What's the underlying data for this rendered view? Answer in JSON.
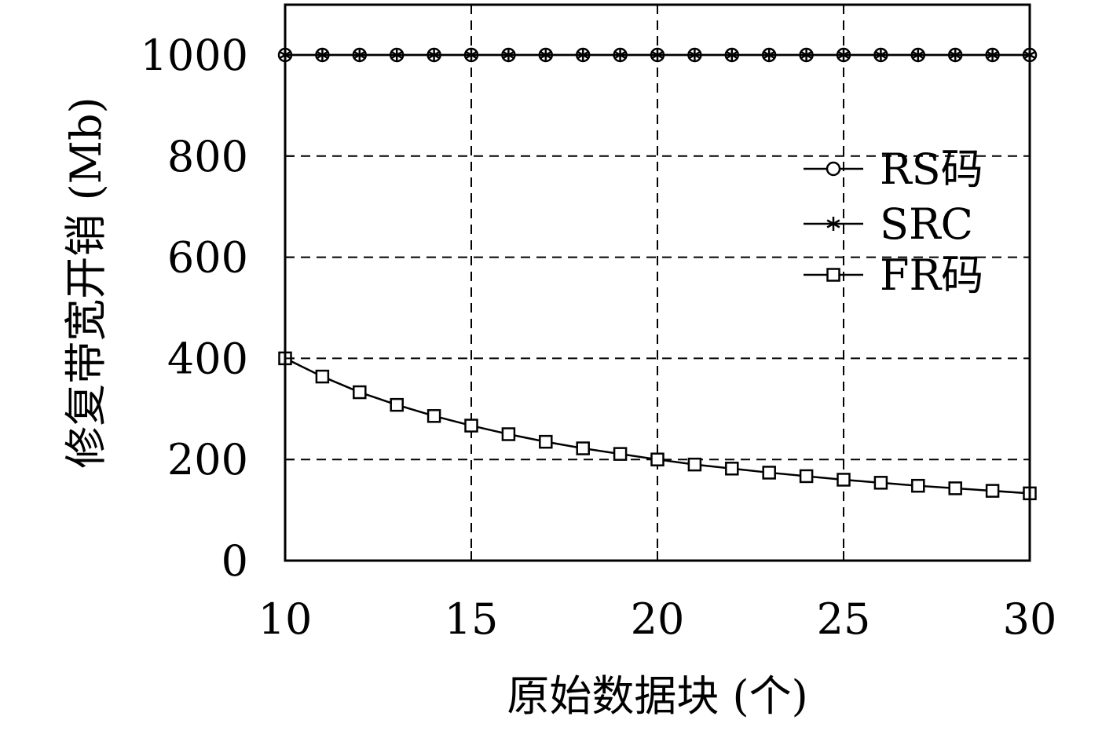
{
  "chart_data": {
    "type": "line",
    "xlabel": "原始数据块 (个)",
    "ylabel": "修复带宽开销 (Mb)",
    "xlim": [
      10,
      30
    ],
    "ylim": [
      0,
      1100
    ],
    "xticks": [
      10,
      15,
      20,
      25,
      30
    ],
    "yticks": [
      0,
      200,
      400,
      600,
      800,
      1000
    ],
    "grid": true,
    "legend_position": "top-right",
    "x": [
      10,
      11,
      12,
      13,
      14,
      15,
      16,
      17,
      18,
      19,
      20,
      21,
      22,
      23,
      24,
      25,
      26,
      27,
      28,
      29,
      30
    ],
    "series": [
      {
        "name": "RS码",
        "marker": "circle",
        "values": [
          1000,
          1000,
          1000,
          1000,
          1000,
          1000,
          1000,
          1000,
          1000,
          1000,
          1000,
          1000,
          1000,
          1000,
          1000,
          1000,
          1000,
          1000,
          1000,
          1000,
          1000
        ]
      },
      {
        "name": "SRC",
        "marker": "asterisk",
        "values": [
          1000,
          1000,
          1000,
          1000,
          1000,
          1000,
          1000,
          1000,
          1000,
          1000,
          1000,
          1000,
          1000,
          1000,
          1000,
          1000,
          1000,
          1000,
          1000,
          1000,
          1000
        ]
      },
      {
        "name": "FR码",
        "marker": "square",
        "values": [
          400,
          364,
          333,
          308,
          286,
          267,
          250,
          235,
          222,
          211,
          200,
          190,
          182,
          174,
          167,
          160,
          154,
          148,
          143,
          138,
          133
        ]
      }
    ]
  }
}
